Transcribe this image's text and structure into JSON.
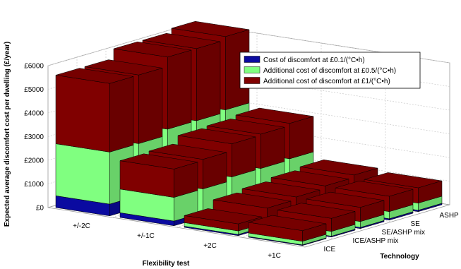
{
  "chart_data": {
    "type": "bar3d",
    "xlabel": "Flexibility test",
    "ylabel": "Expected average discomfort cost per dwelling (£/year)",
    "zlabel": "Technology",
    "flexibility_tests": [
      "+/-2C",
      "+/-1C",
      "+2C",
      "+1C"
    ],
    "technologies": [
      "ICE",
      "ICE/ASHP mix",
      "SE/ASHP mix",
      "SE",
      "ASHP"
    ],
    "y_ticks": [
      "£0",
      "£1000",
      "£2000",
      "£3000",
      "£4000",
      "£5000",
      "£6000"
    ],
    "ylim": [
      0,
      6000
    ],
    "grid": true,
    "legend_position": "top-right",
    "series": [
      {
        "name": "Cost of discomfort at £0.1/(°C•h)",
        "color": "#0a0aa0"
      },
      {
        "name": "Additional cost of discomfort at £0.5/(°C•h)",
        "color": "#80ff80"
      },
      {
        "name": "Additional cost of discomfort at £1/(°C•h)",
        "color": "#800000"
      }
    ],
    "values": {
      "+/-2C": {
        "ICE": [
          500,
          2200,
          2900
        ],
        "ICE/ASHP mix": [
          500,
          2200,
          2900
        ],
        "SE/ASHP mix": [
          550,
          2400,
          3050
        ],
        "SE": [
          550,
          2400,
          3050
        ],
        "ASHP": [
          600,
          2450,
          3100
        ]
      },
      "+/-1C": {
        "ICE": [
          200,
          1000,
          1200
        ],
        "ICE/ASHP mix": [
          200,
          1000,
          1250
        ],
        "SE/ASHP mix": [
          250,
          1100,
          1400
        ],
        "SE": [
          250,
          1100,
          1450
        ],
        "ASHP": [
          250,
          1150,
          1500
        ]
      },
      "+2C": {
        "ICE": [
          50,
          150,
          300
        ],
        "ICE/ASHP mix": [
          60,
          250,
          500
        ],
        "SE/ASHP mix": [
          70,
          300,
          550
        ],
        "SE": [
          80,
          350,
          600
        ],
        "ASHP": [
          80,
          400,
          650
        ]
      },
      "+1C": {
        "ICE": [
          30,
          150,
          450
        ],
        "ICE/ASHP mix": [
          40,
          200,
          550
        ],
        "SE/ASHP mix": [
          50,
          250,
          600
        ],
        "SE": [
          60,
          300,
          650
        ],
        "ASHP": [
          60,
          300,
          650
        ]
      }
    }
  }
}
